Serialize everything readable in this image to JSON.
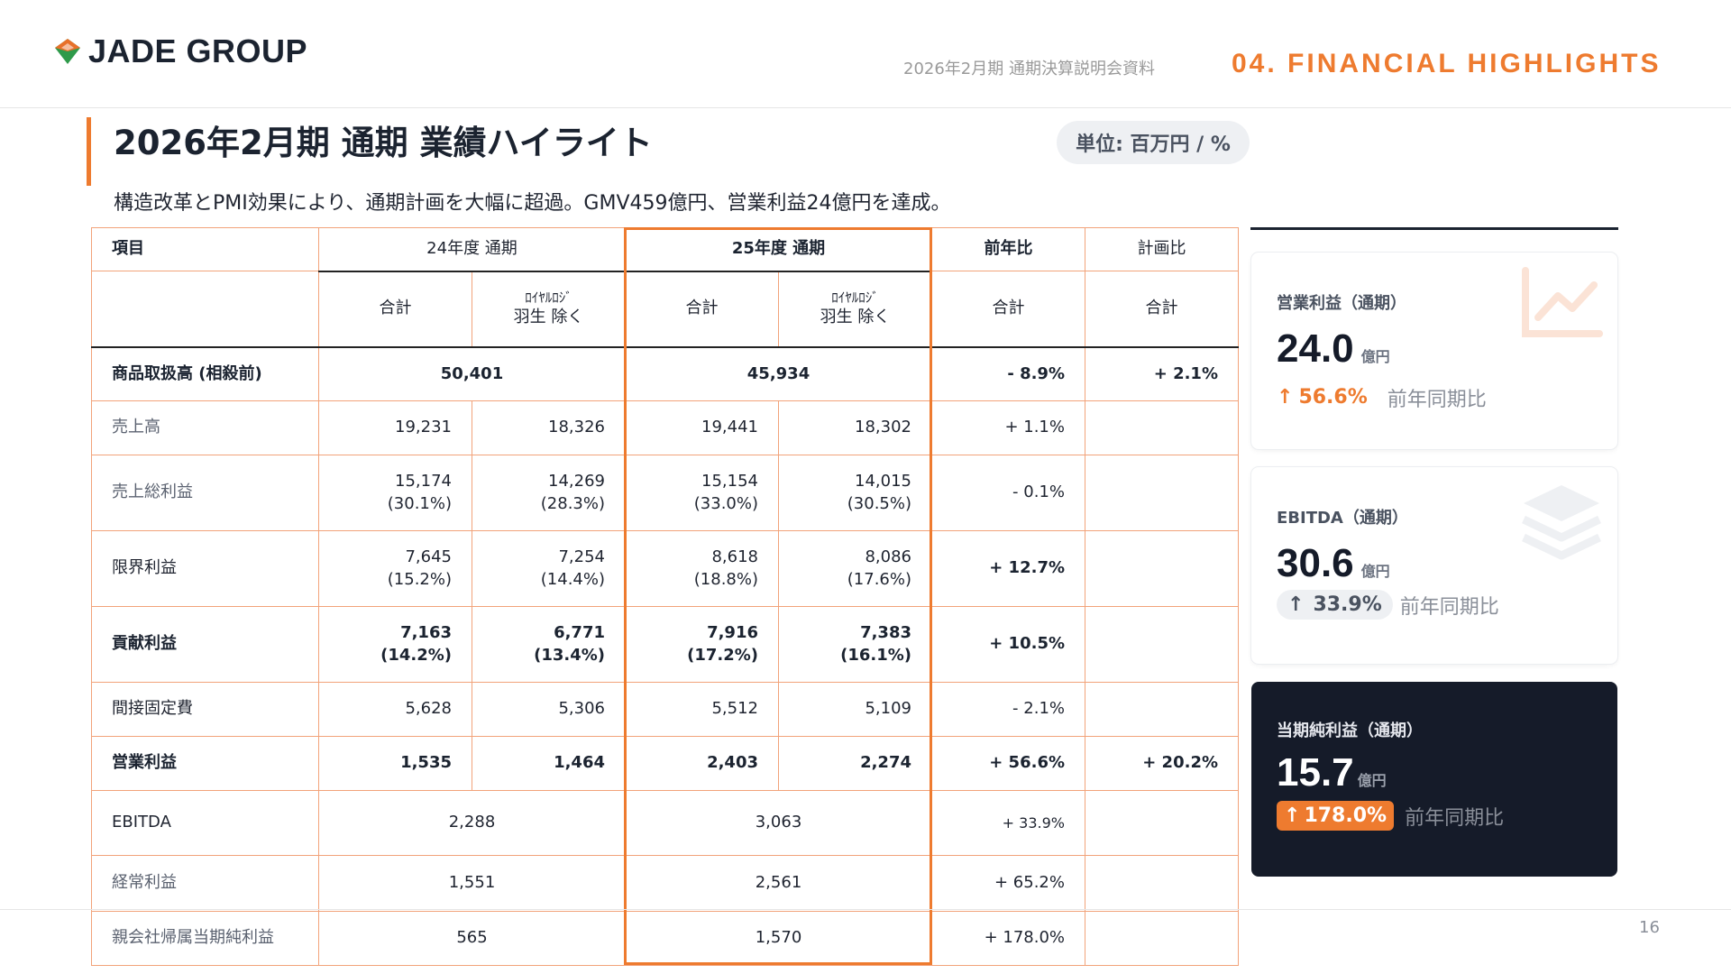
{
  "header": {
    "logo_text": "JADE GROUP",
    "doc_title": "2026年2月期 通期決算説明会資料",
    "section_title": "04. FINANCIAL HIGHLIGHTS"
  },
  "main": {
    "title": "2026年2月期 通期 業績ハイライト",
    "unit": "単位: 百万円 / %",
    "subtitle": "構造改革とPMI効果により、通期計画を大幅に超過。GMV459億円、営業利益24億円を達成。"
  },
  "table": {
    "headers": {
      "item": "項目",
      "fy24": "24年度 通期",
      "fy25": "25年度 通期",
      "yoy": "前年比",
      "plan": "計画比"
    },
    "subheaders": {
      "total": "合計",
      "excl_top": "ﾛｲﾔﾙﾛｼﾞ",
      "excl_bottom": "羽生 除く"
    },
    "rows": {
      "gmv": {
        "label": "商品取扱高 (相殺前)",
        "fy24": "50,401",
        "fy25": "45,934",
        "yoy": "- 8.9%",
        "plan": "+ 2.1%"
      },
      "sales": {
        "label": "売上高",
        "fy24_total": "19,231",
        "fy24_excl": "18,326",
        "fy25_total": "19,441",
        "fy25_excl": "18,302",
        "yoy": "+ 1.1%"
      },
      "gross": {
        "label": "売上総利益",
        "fy24_total": "15,174",
        "fy24_total_pct": "(30.1%)",
        "fy24_excl": "14,269",
        "fy24_excl_pct": "(28.3%)",
        "fy25_total": "15,154",
        "fy25_total_pct": "(33.0%)",
        "fy25_excl": "14,015",
        "fy25_excl_pct": "(30.5%)",
        "yoy": "- 0.1%"
      },
      "marginal": {
        "label": "限界利益",
        "fy24_total": "7,645",
        "fy24_total_pct": "(15.2%)",
        "fy24_excl": "7,254 (14.4%)",
        "fy25_total": "8,618",
        "fy25_total_pct": "(18.8%)",
        "fy25_excl": "8,086",
        "fy25_excl_pct": "(17.6%)",
        "yoy": "+ 12.7%"
      },
      "contribution": {
        "label": "貢献利益",
        "fy24_total": "7,163",
        "fy24_total_pct": "(14.2%)",
        "fy24_excl": "6,771",
        "fy24_excl_pct": "(13.4%)",
        "fy25_total": "7,916",
        "fy25_total_pct": "(17.2%)",
        "fy25_excl": "7,383",
        "fy25_excl_pct": "(16.1%)",
        "yoy": "+ 10.5%"
      },
      "indirect": {
        "label": "間接固定費",
        "fy24_total": "5,628",
        "fy24_excl": "5,306",
        "fy25_total": "5,512",
        "fy25_excl": "5,109",
        "yoy": "- 2.1%"
      },
      "operating": {
        "label": "営業利益",
        "fy24_total": "1,535",
        "fy24_excl": "1,464",
        "fy25_total": "2,403",
        "fy25_excl": "2,274",
        "yoy": "+ 56.6%",
        "plan": "+ 20.2%"
      },
      "ebitda": {
        "label": "EBITDA",
        "fy24": "2,288",
        "fy25": "3,063",
        "yoy": "+ 33.9%"
      },
      "ordinary": {
        "label": "経常利益",
        "fy24": "1,551",
        "fy25": "2,561",
        "yoy": "+ 65.2%"
      },
      "net": {
        "label": "親会社帰属当期純利益",
        "fy24": "565",
        "fy25": "1,570",
        "yoy": "+ 178.0%"
      }
    }
  },
  "cards": [
    {
      "label": "営業利益（通期）",
      "value": "24.0",
      "unit": "億円",
      "change": "56.6%",
      "caption": "前年同期比",
      "icon": "line-chart-icon"
    },
    {
      "label": "EBITDA（通期）",
      "value": "30.6",
      "unit": "億円",
      "change": "33.9%",
      "caption": "前年同期比",
      "icon": "layers-icon"
    },
    {
      "label": "当期純利益（通期）",
      "value": "15.7",
      "unit": "億円",
      "change": "178.0%",
      "caption": "前年同期比",
      "icon": "none"
    }
  ],
  "colors": {
    "accent": "#ee7b2f",
    "dark": "#151b29",
    "border": "#f2a37a",
    "logo_green": "#2e9a4a"
  },
  "page_number": "16"
}
